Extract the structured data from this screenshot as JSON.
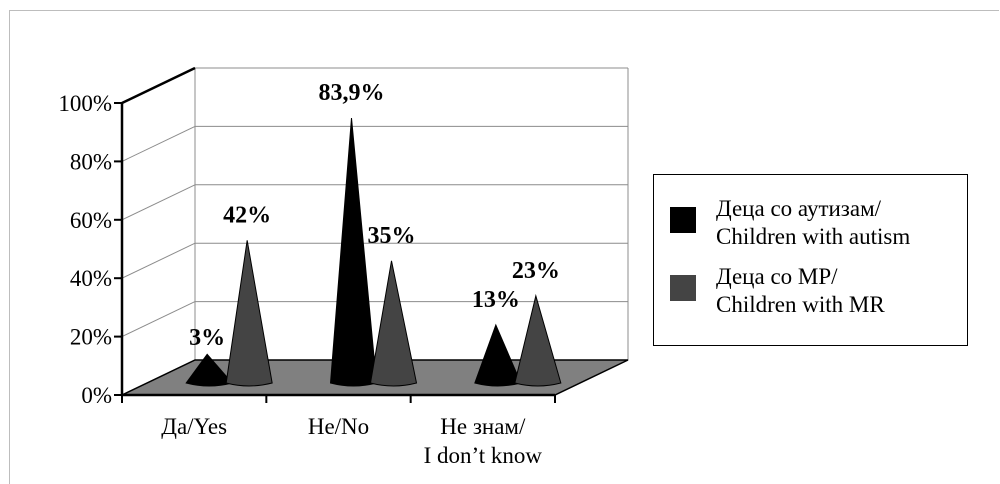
{
  "chart_data": {
    "type": "bar",
    "style": "3d-cone",
    "categories": [
      {
        "line1": "Да/Yes",
        "line2": ""
      },
      {
        "line1": "Не/No",
        "line2": ""
      },
      {
        "line1": "Не знам/",
        "line2": "I don’t know"
      }
    ],
    "ylim": [
      0,
      100
    ],
    "yticks": [
      "0%",
      "20%",
      "40%",
      "60%",
      "80%",
      "100%"
    ],
    "series": [
      {
        "name_line1": "Деца со аутизам/",
        "name_line2": "Children with autism",
        "color": "#000000",
        "values": [
          3,
          83.9,
          13
        ],
        "labels": [
          "3%",
          "83,9%",
          "13%"
        ]
      },
      {
        "name_line1": "Деца со МР/",
        "name_line2": "Children with MR",
        "color": "#444444",
        "values": [
          42,
          35,
          23
        ],
        "labels": [
          "42%",
          "35%",
          "23%"
        ]
      }
    ],
    "grid": true,
    "floor_color": "#808080",
    "legend_position": "right"
  }
}
